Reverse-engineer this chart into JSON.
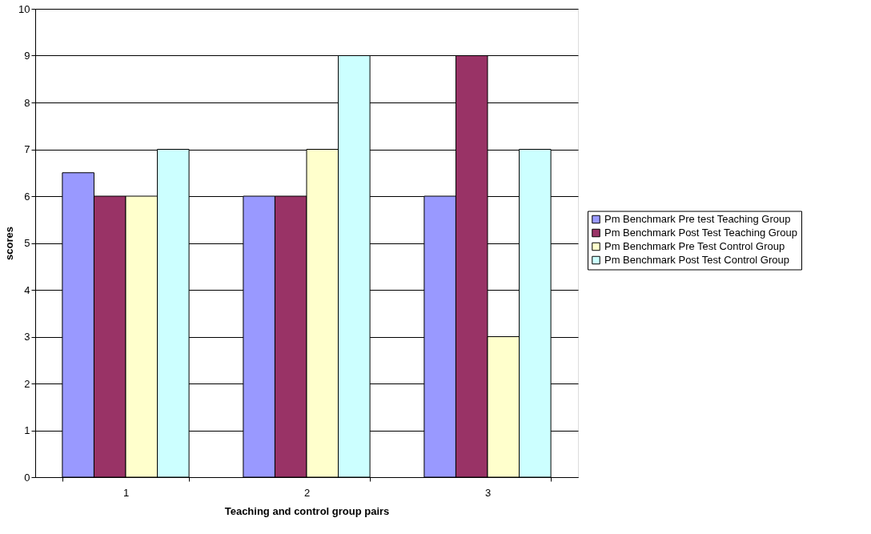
{
  "chart_data": {
    "type": "bar",
    "xlabel": "Teaching and control group pairs",
    "ylabel": "scores",
    "categories": [
      "1",
      "2",
      "3"
    ],
    "series": [
      {
        "name": "Pm Benchmark Pre test Teaching Group",
        "color": "#9999ff",
        "values": [
          6.5,
          6,
          6
        ]
      },
      {
        "name": "Pm Benchmark Post Test Teaching Group",
        "color": "#993366",
        "values": [
          6,
          6,
          9
        ]
      },
      {
        "name": "Pm Benchmark Pre Test Control Group",
        "color": "#ffffcc",
        "values": [
          6,
          7,
          3
        ]
      },
      {
        "name": "Pm Benchmark Post Test Control Group",
        "color": "#ccffff",
        "values": [
          7,
          9,
          7
        ]
      }
    ],
    "ylim": [
      0,
      10
    ],
    "yticks": [
      0,
      1,
      2,
      3,
      4,
      5,
      6,
      7,
      8,
      9,
      10
    ],
    "grid": "y",
    "legend": "right"
  }
}
